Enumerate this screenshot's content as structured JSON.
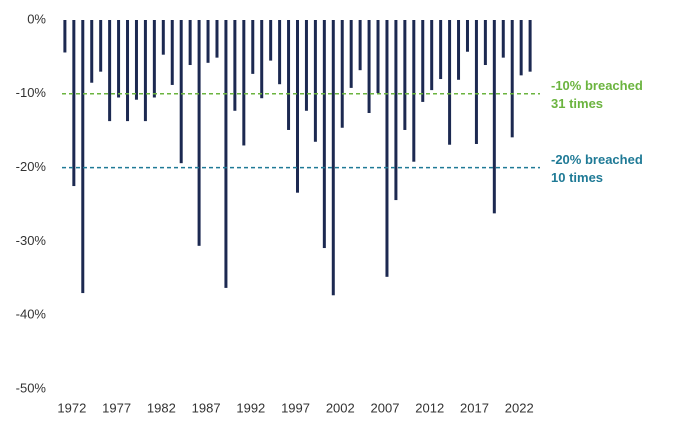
{
  "chart_data": {
    "type": "bar",
    "x": [
      1972,
      1973,
      1974,
      1975,
      1976,
      1977,
      1978,
      1979,
      1980,
      1981,
      1982,
      1983,
      1984,
      1985,
      1986,
      1987,
      1988,
      1989,
      1990,
      1991,
      1992,
      1993,
      1994,
      1995,
      1996,
      1997,
      1998,
      1999,
      2000,
      2001,
      2002,
      2003,
      2004,
      2005,
      2006,
      2007,
      2008,
      2009,
      2010,
      2011,
      2012,
      2013,
      2014,
      2015,
      2016,
      2017,
      2018,
      2019,
      2020,
      2021,
      2022,
      2023,
      2024
    ],
    "values": [
      -4.4,
      -22.5,
      -37,
      -8.5,
      -7,
      -13.7,
      -10.5,
      -13.7,
      -10.8,
      -13.7,
      -10.5,
      -4.7,
      -8.8,
      -19.4,
      -6.1,
      -30.6,
      -5.8,
      -5.1,
      -36.3,
      -12.3,
      -17,
      -7.3,
      -10.6,
      -5.5,
      -8.7,
      -14.9,
      -23.4,
      -12.3,
      -16.5,
      -30.9,
      -37.3,
      -14.6,
      -9.2,
      -6.8,
      -12.6,
      -9.9,
      -34.8,
      -24.4,
      -14.9,
      -19.2,
      -11.1,
      -9.5,
      -8,
      -16.9,
      -8.1,
      -4.3,
      -16.8,
      -6.1,
      -26.2,
      -5.1,
      -15.9,
      -7.5,
      -7
    ],
    "color": "#1c2951",
    "xlim": [
      1970,
      2026
    ],
    "xticks": [
      1972,
      1977,
      1982,
      1987,
      1992,
      1997,
      2002,
      2007,
      2012,
      2017,
      2022
    ],
    "ylim": [
      -50,
      0
    ],
    "yticks": [
      {
        "value": 0,
        "label": "0%"
      },
      {
        "value": -10,
        "label": "-10%"
      },
      {
        "value": -20,
        "label": "-20%"
      },
      {
        "value": -30,
        "label": "-30%"
      },
      {
        "value": -40,
        "label": "-40%"
      },
      {
        "value": -50,
        "label": "-50%"
      }
    ],
    "reference_lines": [
      {
        "value": -10,
        "color": "#6bb43f",
        "label": [
          "-10% breached",
          "31 times"
        ]
      },
      {
        "value": -20,
        "color": "#1f7a96",
        "label": [
          "-20% breached",
          "10 times"
        ]
      }
    ]
  }
}
